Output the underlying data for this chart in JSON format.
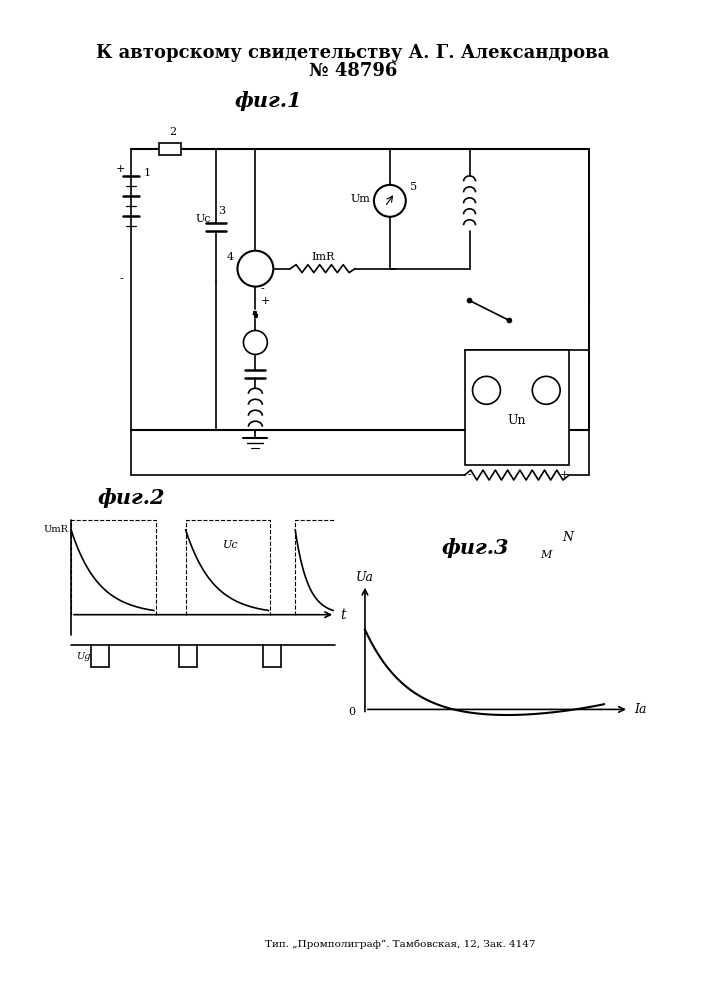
{
  "title_line1": "К авторскому свидетельству А. Г. Александрова",
  "title_line2": "№ 48796",
  "fig1_label": "фиг.1",
  "fig2_label": "фиг.2",
  "fig3_label": "фиг.3",
  "footer": "Тип. „Промполиграф“. Тамбовская, 12, Зак. 4147",
  "bg_color": "#ffffff",
  "line_color": "#000000",
  "fig_width": 7.07,
  "fig_height": 10.0
}
